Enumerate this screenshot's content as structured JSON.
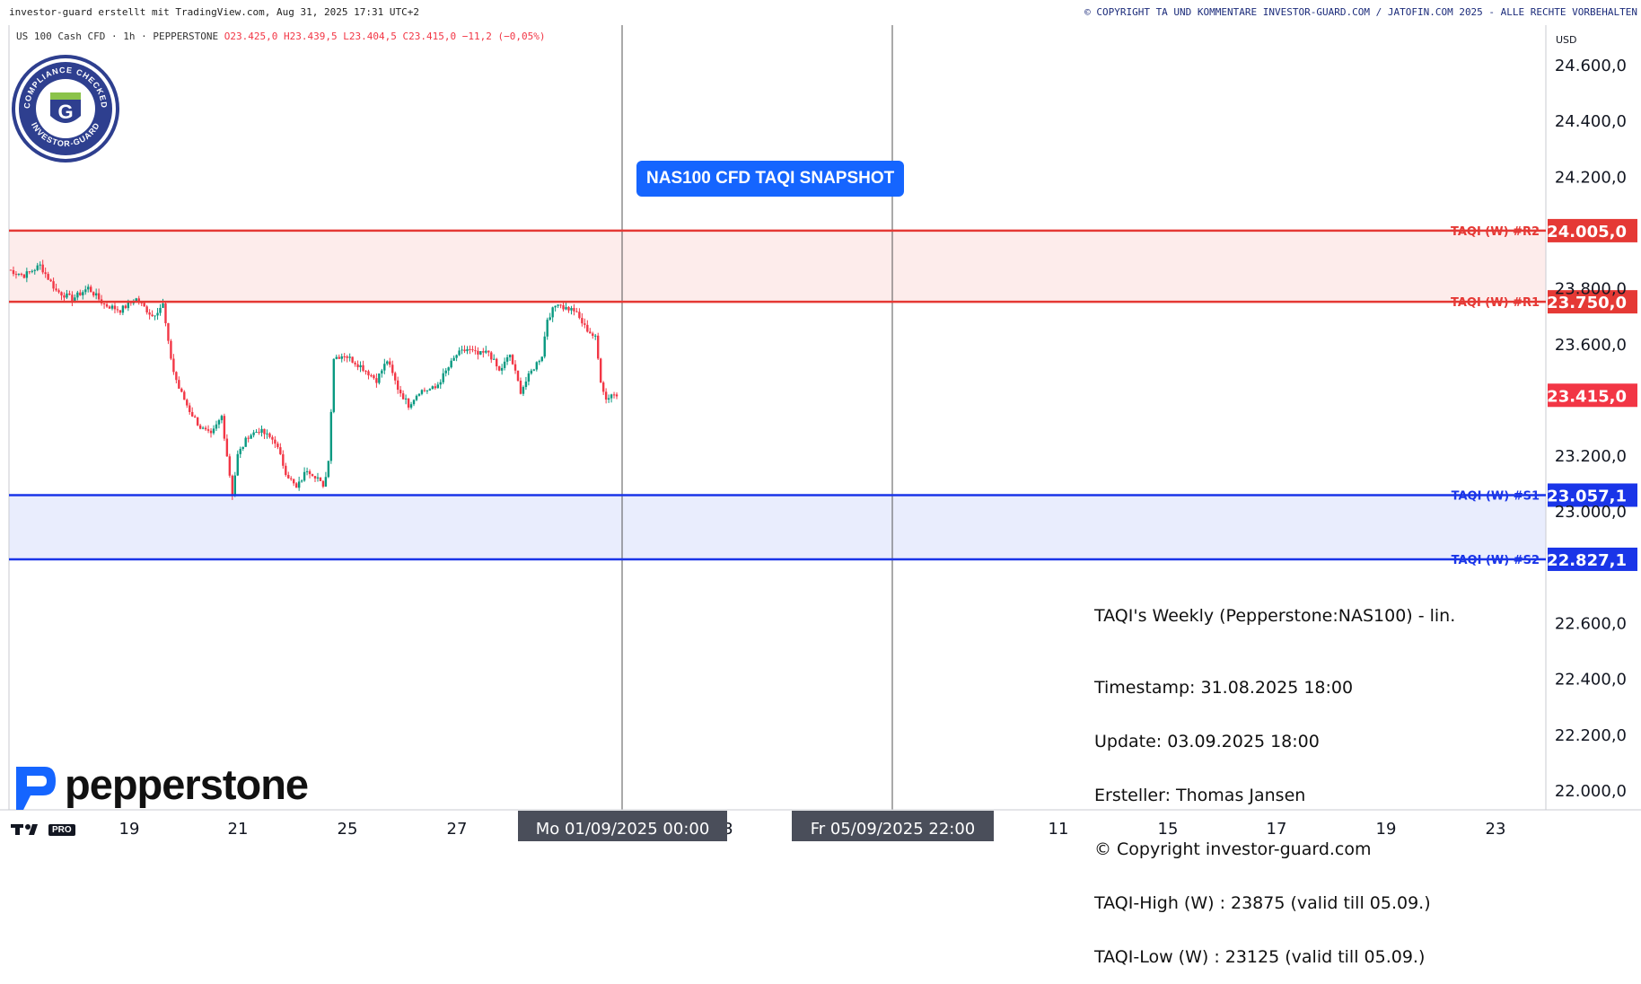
{
  "header": {
    "attribution": "investor-guard erstellt mit TradingView.com, Aug 31, 2025 17:31 UTC+2",
    "copyright": "© COPYRIGHT TA UND KOMMENTARE INVESTOR-GUARD.COM / JATOFIN.COM 2025 - ALLE RECHTE VORBEHALTEN"
  },
  "symbol_line": {
    "symbol": "US 100 Cash CFD · 1h · PEPPERSTONE",
    "open": "O23.425,0",
    "high": "H23.439,5",
    "low": "L23.404,5",
    "close": "C23.415,0",
    "change": "−11,2 (−0,05%)"
  },
  "badge": {
    "top_text": "COMPLIANCE CHECKED",
    "bottom_text": "INVESTOR-GUARD",
    "letter": "G"
  },
  "snapshot_label": "NAS100 CFD TAQI SNAPSHOT",
  "info": {
    "title": "TAQI's Weekly (Pepperstone:NAS100) - lin.",
    "lines": [
      "Timestamp: 31.08.2025 18:00",
      "Update: 03.09.2025 18:00",
      "Ersteller: Thomas Jansen",
      "© Copyright investor-guard.com",
      "TAQI-High (W) : 23875 (valid till 05.09.)",
      "TAQI-Low (W) : 23125 (valid till 05.09.)"
    ]
  },
  "broker_logo": "pepperstone",
  "tv_logo": "TV PRO",
  "chart_data": {
    "type": "candlestick",
    "currency": "USD",
    "yaxis": {
      "ticks": [
        24600,
        24400,
        24200,
        24000,
        23800,
        23600,
        23400,
        23200,
        23000,
        22800,
        22600,
        22400,
        22200,
        22000
      ],
      "tick_labels": [
        "24.600,0",
        "24.400,0",
        "24.200,0",
        "",
        "23.800,0",
        "23.600,0",
        "",
        "23.200,0",
        "23.000,0",
        "",
        "22.600,0",
        "22.400,0",
        "22.200,0",
        "22.000,0"
      ],
      "ylim": [
        21920,
        24700
      ]
    },
    "xaxis": {
      "tick_labels": [
        "19",
        "21",
        "25",
        "27",
        "3",
        "11",
        "15",
        "17",
        "19",
        "23"
      ],
      "crosshair_labels": [
        "Mo 01/09/2025   00:00",
        "Fr 05/09/2025   22:00"
      ]
    },
    "levels": [
      {
        "name": "TAQI (W) #R2",
        "value": 24005.0,
        "label": "24.005,0",
        "color": "#e53935"
      },
      {
        "name": "TAQI (W) #R1",
        "value": 23750.0,
        "label": "23.750,0",
        "color": "#e53935"
      },
      {
        "name": "TAQI (W) #S1",
        "value": 23057.1,
        "label": "23.057,1",
        "color": "#1a35e8"
      },
      {
        "name": "TAQI (W) #S2",
        "value": 22827.1,
        "label": "22.827,1",
        "color": "#1a35e8"
      }
    ],
    "last_price": {
      "value": 23415.0,
      "label": "23.415,0",
      "color": "#f23645"
    },
    "price_path": [
      [
        0,
        23865
      ],
      [
        3,
        23845
      ],
      [
        6,
        23880
      ],
      [
        9,
        23790
      ],
      [
        12,
        23760
      ],
      [
        15,
        23800
      ],
      [
        18,
        23740
      ],
      [
        21,
        23720
      ],
      [
        24,
        23760
      ],
      [
        27,
        23700
      ],
      [
        29,
        23740
      ],
      [
        30,
        23600
      ],
      [
        31,
        23500
      ],
      [
        32,
        23440
      ],
      [
        34,
        23360
      ],
      [
        36,
        23300
      ],
      [
        38,
        23270
      ],
      [
        40,
        23340
      ],
      [
        41,
        23200
      ],
      [
        42,
        23060
      ],
      [
        43,
        23200
      ],
      [
        45,
        23270
      ],
      [
        47,
        23290
      ],
      [
        50,
        23250
      ],
      [
        52,
        23140
      ],
      [
        54,
        23080
      ],
      [
        56,
        23150
      ],
      [
        58,
        23120
      ],
      [
        59,
        23080
      ],
      [
        60,
        23180
      ],
      [
        61,
        23550
      ],
      [
        63,
        23560
      ],
      [
        66,
        23520
      ],
      [
        69,
        23470
      ],
      [
        71,
        23540
      ],
      [
        73,
        23440
      ],
      [
        75,
        23380
      ],
      [
        77,
        23430
      ],
      [
        80,
        23440
      ],
      [
        82,
        23500
      ],
      [
        84,
        23560
      ],
      [
        86,
        23580
      ],
      [
        88,
        23560
      ],
      [
        90,
        23570
      ],
      [
        92,
        23500
      ],
      [
        94,
        23560
      ],
      [
        96,
        23430
      ],
      [
        98,
        23500
      ],
      [
        100,
        23560
      ],
      [
        101,
        23690
      ],
      [
        103,
        23750
      ],
      [
        104,
        23730
      ],
      [
        106,
        23720
      ],
      [
        108,
        23660
      ],
      [
        110,
        23620
      ],
      [
        111,
        23470
      ],
      [
        112,
        23400
      ],
      [
        113,
        23420
      ],
      [
        114,
        23415
      ]
    ],
    "total_bars": 114
  },
  "colors": {
    "up": "#089981",
    "down": "#f23645",
    "resistance_zone": "#fdeceb",
    "support_zone": "#e9edfd"
  }
}
